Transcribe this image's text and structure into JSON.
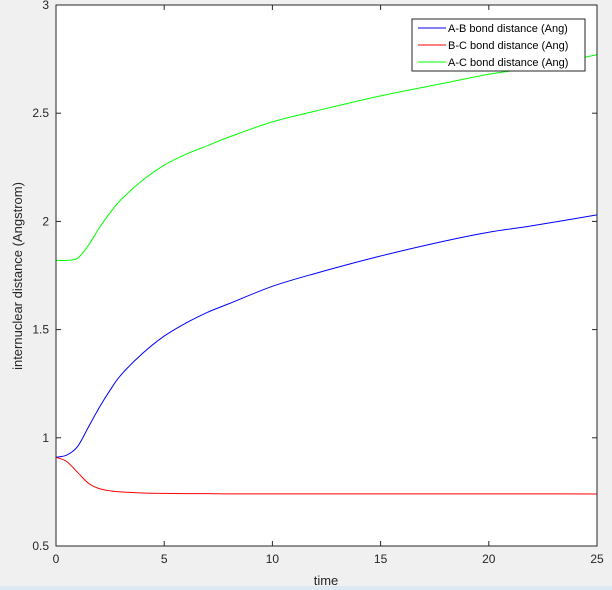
{
  "chart_data": {
    "type": "line",
    "title": "",
    "xlabel": "time",
    "ylabel": "internuclear distance (Angstrom)",
    "xlim": [
      0,
      25
    ],
    "ylim": [
      0.5,
      3
    ],
    "xticks": [
      0,
      5,
      10,
      15,
      20,
      25
    ],
    "yticks": [
      0.5,
      1,
      1.5,
      2,
      2.5,
      3
    ],
    "xtick_labels": [
      "0",
      "5",
      "10",
      "15",
      "20",
      "25"
    ],
    "ytick_labels": [
      "0.5",
      "1",
      "1.5",
      "2",
      "2.5",
      "3"
    ],
    "grid": false,
    "legend_position": "top-right",
    "x": [
      0,
      0.5,
      1,
      1.5,
      2,
      2.5,
      3,
      4,
      5,
      6,
      7,
      8,
      10,
      12,
      15,
      18,
      20,
      22,
      25
    ],
    "series": [
      {
        "name": "A-B bond distance (Ang)",
        "color": "#0000ff",
        "values": [
          0.91,
          0.92,
          0.96,
          1.05,
          1.14,
          1.22,
          1.29,
          1.39,
          1.47,
          1.53,
          1.58,
          1.62,
          1.7,
          1.76,
          1.84,
          1.91,
          1.95,
          1.98,
          2.03
        ]
      },
      {
        "name": "B-C bond distance (Ang)",
        "color": "#ff0000",
        "values": [
          0.91,
          0.89,
          0.84,
          0.79,
          0.765,
          0.755,
          0.75,
          0.745,
          0.743,
          0.742,
          0.742,
          0.741,
          0.741,
          0.741,
          0.741,
          0.741,
          0.741,
          0.741,
          0.74
        ]
      },
      {
        "name": "A-C bond distance (Ang)",
        "color": "#00ff00",
        "values": [
          1.82,
          1.82,
          1.83,
          1.89,
          1.97,
          2.04,
          2.1,
          2.19,
          2.26,
          2.31,
          2.35,
          2.39,
          2.46,
          2.51,
          2.58,
          2.64,
          2.68,
          2.71,
          2.77
        ]
      }
    ]
  }
}
